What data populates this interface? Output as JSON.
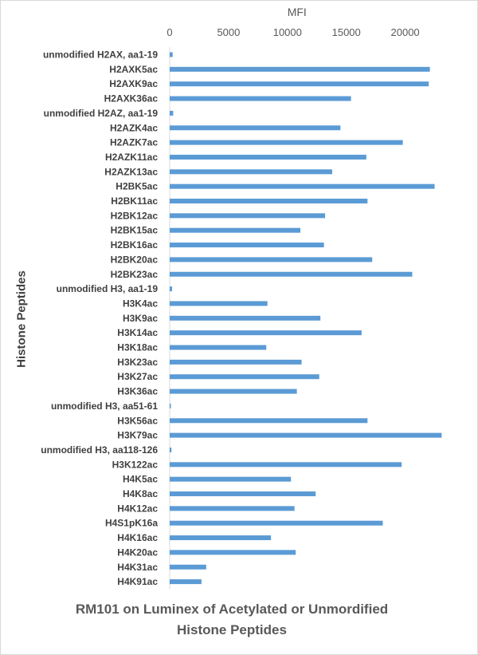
{
  "chart_data": {
    "type": "bar",
    "orientation": "horizontal",
    "title_lines": [
      "RM101 on Luminex of Acetylated or Unmordified",
      "Histone Peptides"
    ],
    "xlabel": "MFI",
    "ylabel": "Histone Peptides",
    "xlim": [
      0,
      25000
    ],
    "xticks": [
      0,
      5000,
      10000,
      15000,
      20000
    ],
    "grid": false,
    "legend": "none",
    "bar_color": "#5b9bd5",
    "categories": [
      "unmodified H2AX, aa1-19",
      "H2AXK5ac",
      "H2AXK9ac",
      "H2AXK36ac",
      "unmodified H2AZ, aa1-19",
      "H2AZK4ac",
      "H2AZK7ac",
      "H2AZK11ac",
      "H2AZK13ac",
      "H2BK5ac",
      "H2BK11ac",
      "H2BK12ac",
      "H2BK15ac",
      "H2BK16ac",
      "H2BK20ac",
      "H2BK23ac",
      "unmodified H3, aa1-19",
      "H3K4ac",
      "H3K9ac",
      "H3K14ac",
      "H3K18ac",
      "H3K23ac",
      "H3K27ac",
      "H3K36ac",
      "unmodified H3, aa51-61",
      "H3K56ac",
      "H3K79ac",
      "unmodified H3, aa118-126",
      "H3K122ac",
      "H4K5ac",
      "H4K8ac",
      "H4K12ac",
      "H4S1pK16a",
      "H4K16ac",
      "H4K20ac",
      "H4K31ac",
      "H4K91ac"
    ],
    "values": [
      250,
      22100,
      22000,
      15400,
      300,
      14500,
      19800,
      16700,
      13800,
      22500,
      16800,
      13200,
      11100,
      13100,
      17200,
      20600,
      200,
      8300,
      12800,
      16300,
      8200,
      11200,
      12700,
      10800,
      100,
      16800,
      23100,
      150,
      19700,
      10300,
      12400,
      10600,
      18100,
      8600,
      10700,
      3100,
      2700
    ]
  }
}
